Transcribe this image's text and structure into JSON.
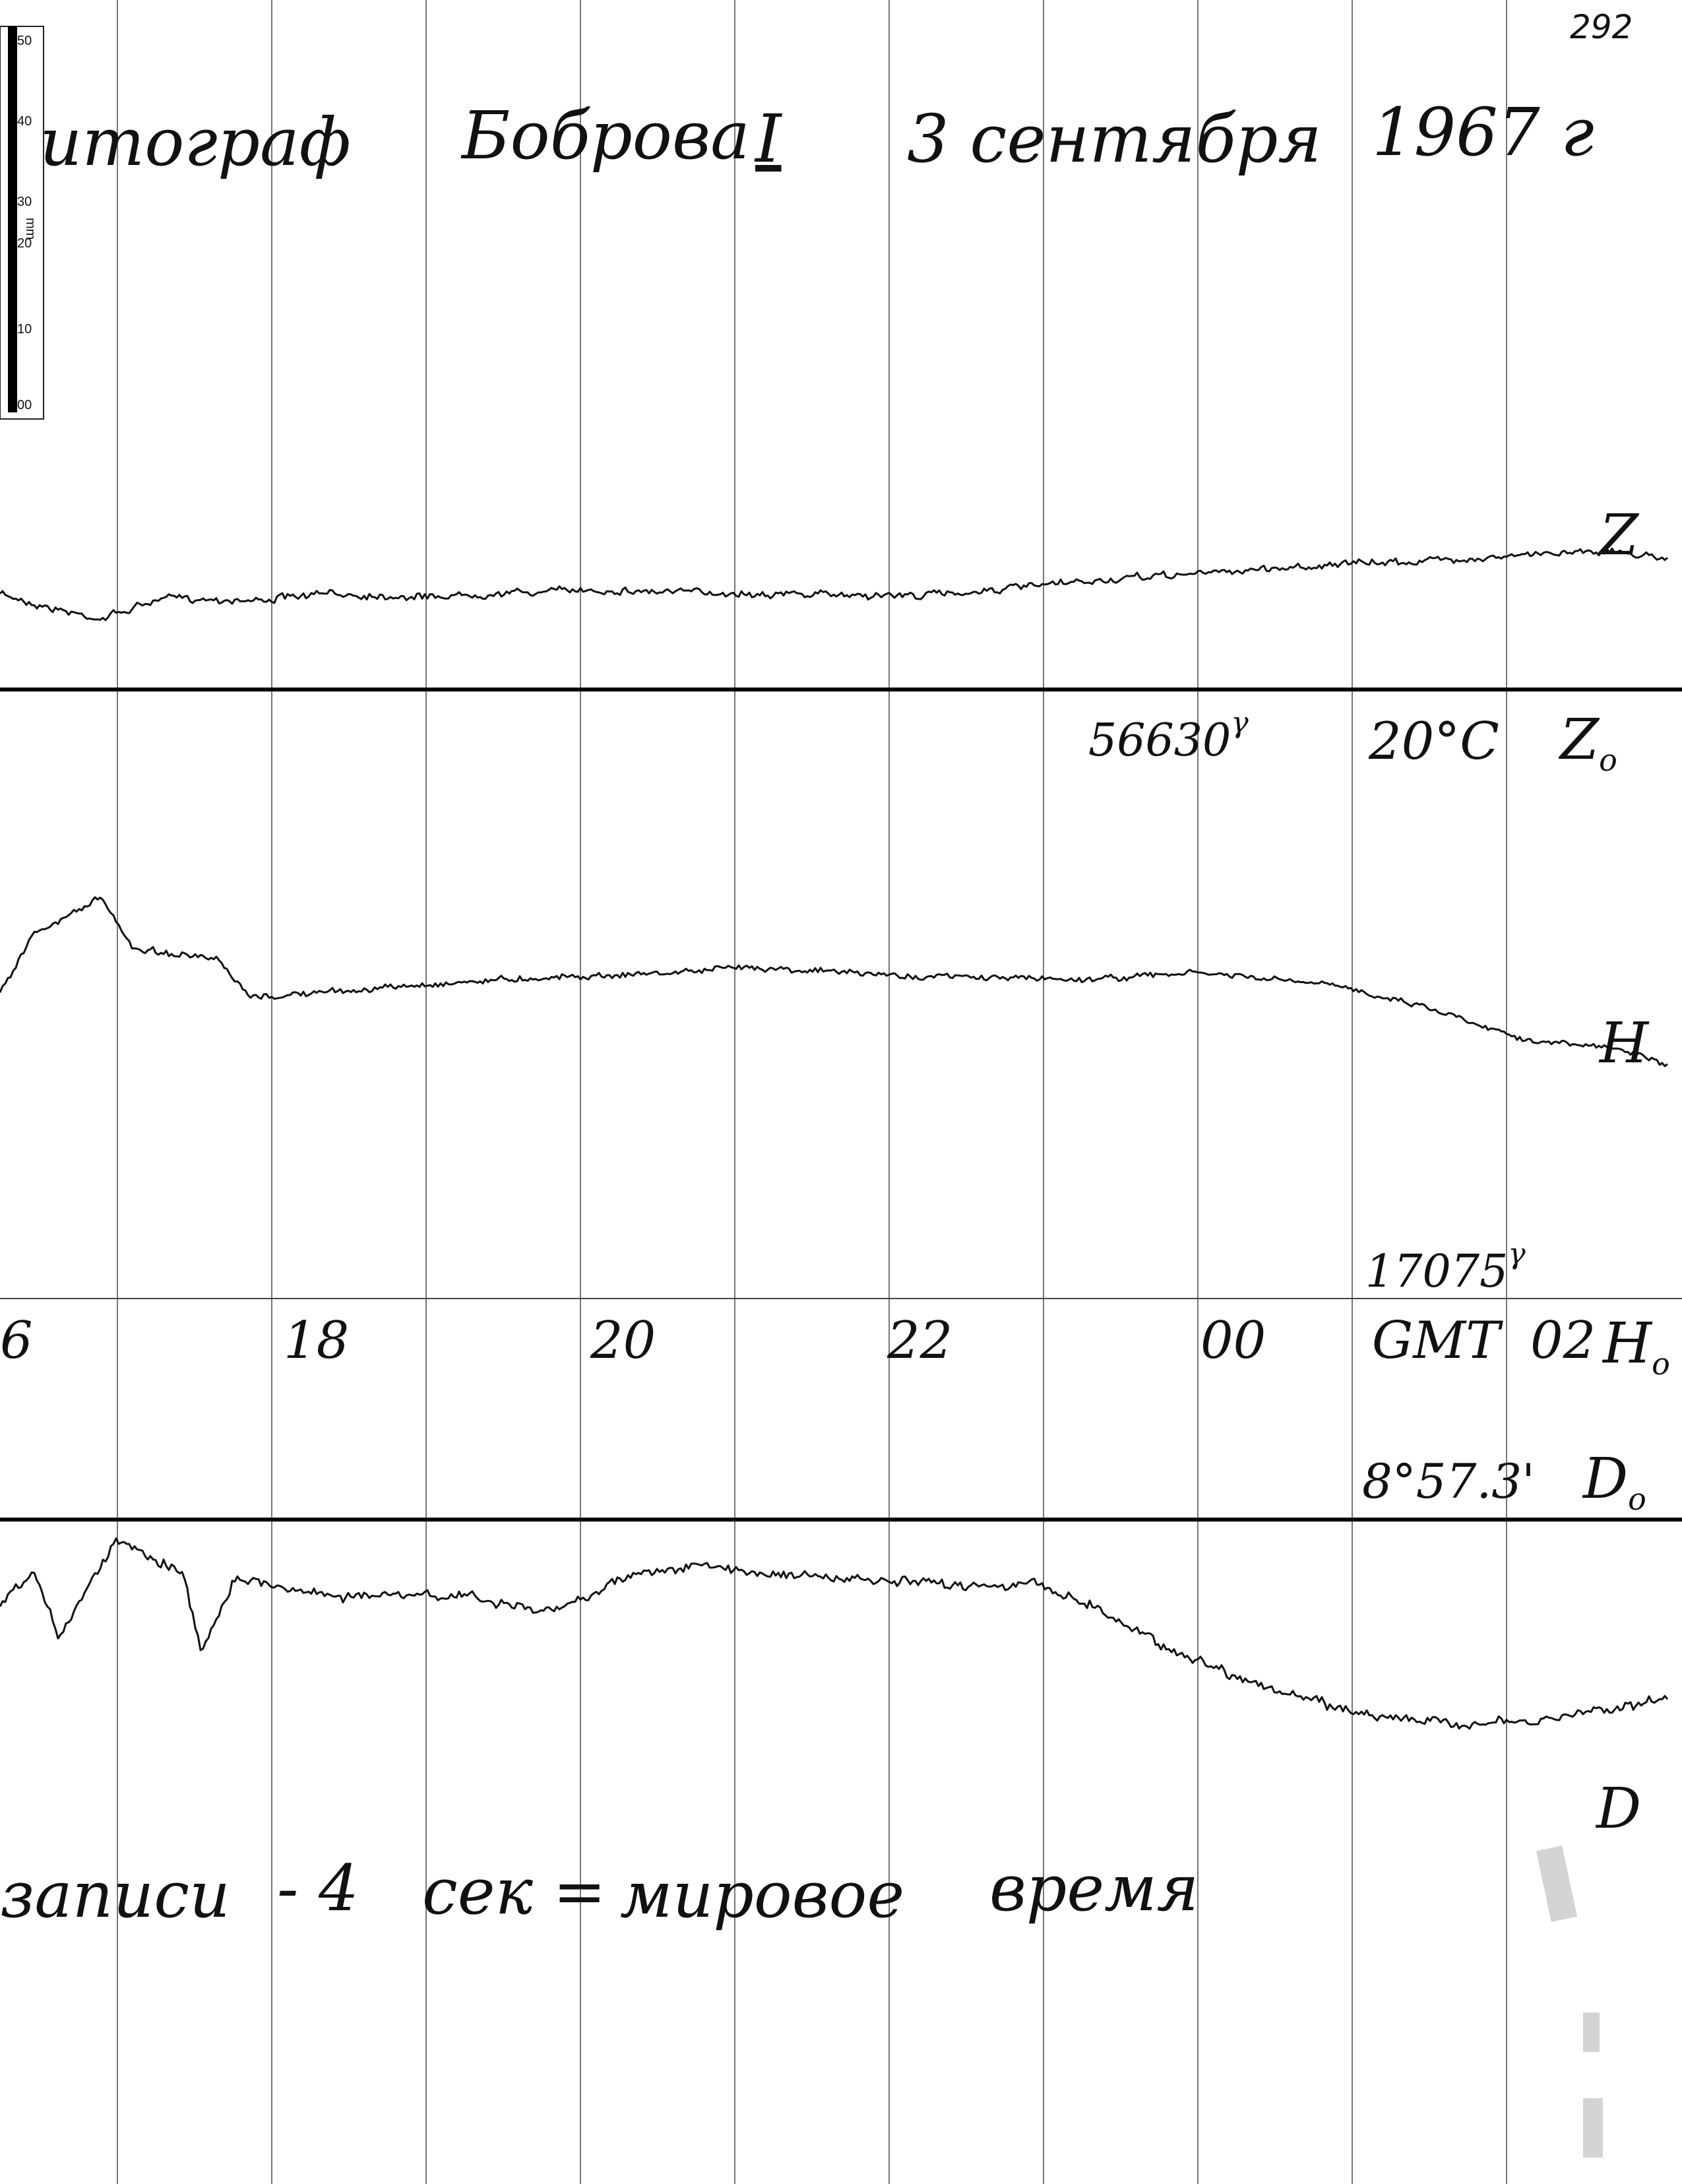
{
  "sheet_number": "292",
  "title": {
    "instrument": "итограф",
    "station": "Боброва",
    "variometer_set": "I",
    "date": "3 сентября",
    "year": "1967 г"
  },
  "ruler": {
    "unit": "mm",
    "ticks": [
      "50",
      "40",
      "30",
      "20",
      "10",
      "00"
    ]
  },
  "baseline_labels": {
    "z0_value": "56630",
    "z0_unit": "γ",
    "temperature": "20°C",
    "z0_label": "Z",
    "z0_sub": "o",
    "h0_value": "17075",
    "h0_unit": "γ",
    "h0_label": "H",
    "h0_sub": "o",
    "d0_value": "8°57.3'",
    "d0_label": "D",
    "d0_sub": "o"
  },
  "time_axis": {
    "ticks": [
      "6",
      "18",
      "20",
      "22",
      "00",
      "02"
    ],
    "timezone_label": "GMT"
  },
  "footer_note": {
    "part1": "записи",
    "part2": "- 4",
    "part3": "сек =",
    "part4": "мировое",
    "part5": "время"
  },
  "chart_data": {
    "type": "line",
    "title": "",
    "x_units": "hours (GMT)",
    "x_range": [
      16.2,
      2.8
    ],
    "hour_marks": [
      17,
      18,
      19,
      20,
      21,
      22,
      23,
      0,
      1,
      2
    ],
    "series": [
      {
        "name": "Z",
        "baseline_name": "Zo",
        "trend": [
          [
            0,
            0.55
          ],
          [
            0.03,
            0.35
          ],
          [
            0.06,
            0.2
          ],
          [
            0.1,
            0.5
          ],
          [
            0.15,
            0.45
          ],
          [
            0.2,
            0.55
          ],
          [
            0.25,
            0.5
          ],
          [
            0.35,
            0.6
          ],
          [
            0.45,
            0.55
          ],
          [
            0.55,
            0.52
          ],
          [
            0.62,
            0.65
          ],
          [
            0.7,
            0.8
          ],
          [
            0.8,
            0.95
          ],
          [
            0.9,
            1.05
          ],
          [
            0.95,
            1.15
          ],
          [
            1.0,
            1.05
          ]
        ]
      },
      {
        "name": "H",
        "baseline_name": "Ho",
        "trend": [
          [
            0,
            0.3
          ],
          [
            0.02,
            0.75
          ],
          [
            0.06,
            1.05
          ],
          [
            0.08,
            0.65
          ],
          [
            0.13,
            0.55
          ],
          [
            0.15,
            0.25
          ],
          [
            0.2,
            0.3
          ],
          [
            0.3,
            0.4
          ],
          [
            0.4,
            0.45
          ],
          [
            0.45,
            0.5
          ],
          [
            0.55,
            0.42
          ],
          [
            0.65,
            0.4
          ],
          [
            0.72,
            0.45
          ],
          [
            0.8,
            0.35
          ],
          [
            0.85,
            0.2
          ],
          [
            0.92,
            -0.1
          ],
          [
            0.97,
            -0.15
          ],
          [
            1.0,
            -0.3
          ]
        ]
      },
      {
        "name": "D",
        "baseline_name": "Do",
        "trend": [
          [
            0,
            0.25
          ],
          [
            0.02,
            0.55
          ],
          [
            0.035,
            0.0
          ],
          [
            0.07,
            0.85
          ],
          [
            0.11,
            0.55
          ],
          [
            0.12,
            -0.15
          ],
          [
            0.14,
            0.5
          ],
          [
            0.2,
            0.35
          ],
          [
            0.28,
            0.35
          ],
          [
            0.33,
            0.2
          ],
          [
            0.38,
            0.55
          ],
          [
            0.42,
            0.6
          ],
          [
            0.5,
            0.5
          ],
          [
            0.56,
            0.45
          ],
          [
            0.62,
            0.45
          ],
          [
            0.65,
            0.3
          ],
          [
            0.7,
            -0.1
          ],
          [
            0.76,
            -0.45
          ],
          [
            0.81,
            -0.65
          ],
          [
            0.86,
            -0.75
          ],
          [
            0.92,
            -0.75
          ],
          [
            0.95,
            -0.65
          ],
          [
            1.0,
            -0.55
          ]
        ]
      }
    ]
  }
}
